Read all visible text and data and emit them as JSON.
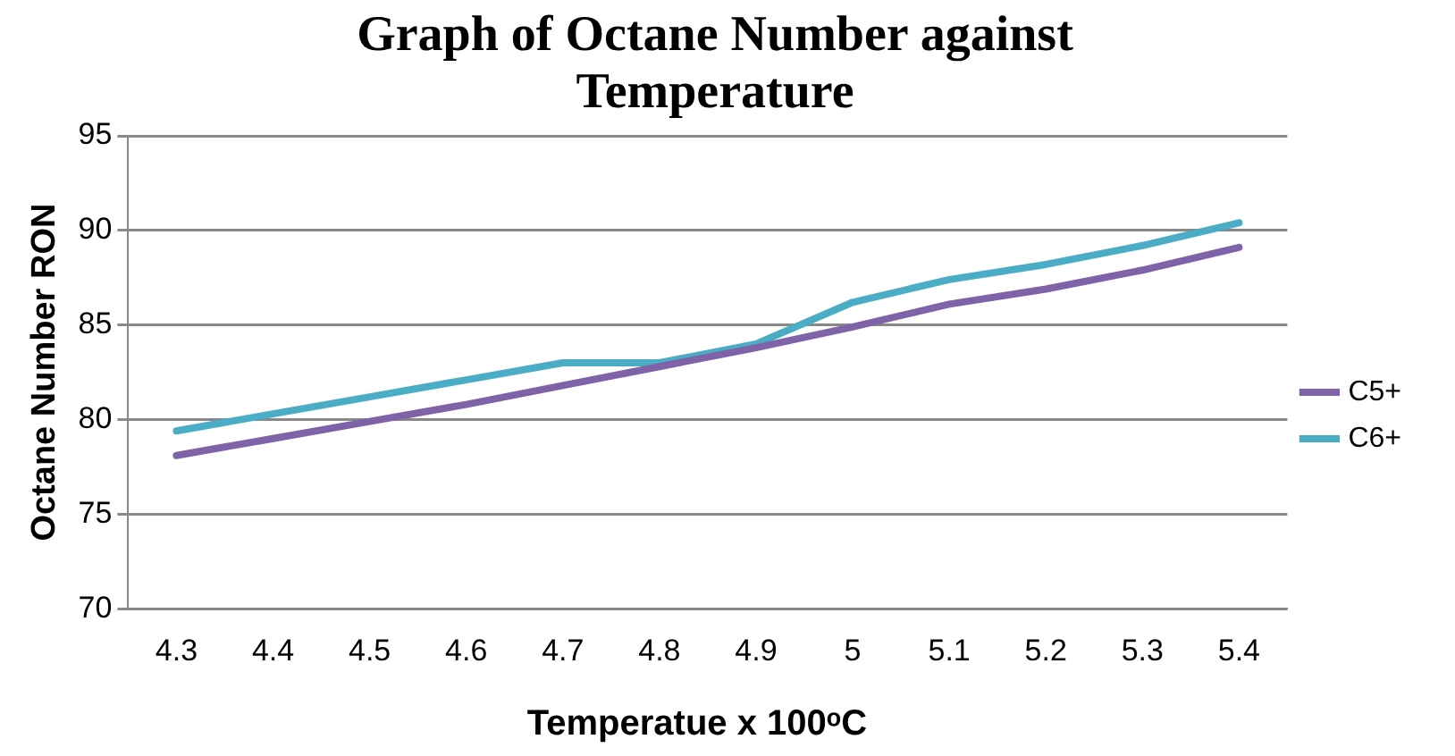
{
  "chart_data": {
    "type": "line",
    "title": "Graph of Octane Number against Temperature",
    "xlabel": "Temperatue x 100ᵒC",
    "ylabel": "Octane Number RON",
    "categories": [
      "4.3",
      "4.4",
      "4.5",
      "4.6",
      "4.7",
      "4.8",
      "4.9",
      "5",
      "5.1",
      "5.2",
      "5.3",
      "5.4"
    ],
    "series": [
      {
        "name": "C5+",
        "color": "#7f62a8",
        "values": [
          78.1,
          79.0,
          79.9,
          80.8,
          81.8,
          82.8,
          83.8,
          84.9,
          86.1,
          86.9,
          87.9,
          89.1
        ]
      },
      {
        "name": "C6+",
        "color": "#4bacc6",
        "values": [
          79.4,
          80.3,
          81.2,
          82.1,
          83.0,
          83.0,
          84.0,
          86.2,
          87.4,
          88.2,
          89.2,
          90.4
        ]
      }
    ],
    "ylim": [
      70,
      95
    ],
    "yticks": [
      70,
      75,
      80,
      85,
      90,
      95
    ],
    "grid": "y",
    "legend": "right",
    "marker": "none",
    "line_style": "solid"
  }
}
